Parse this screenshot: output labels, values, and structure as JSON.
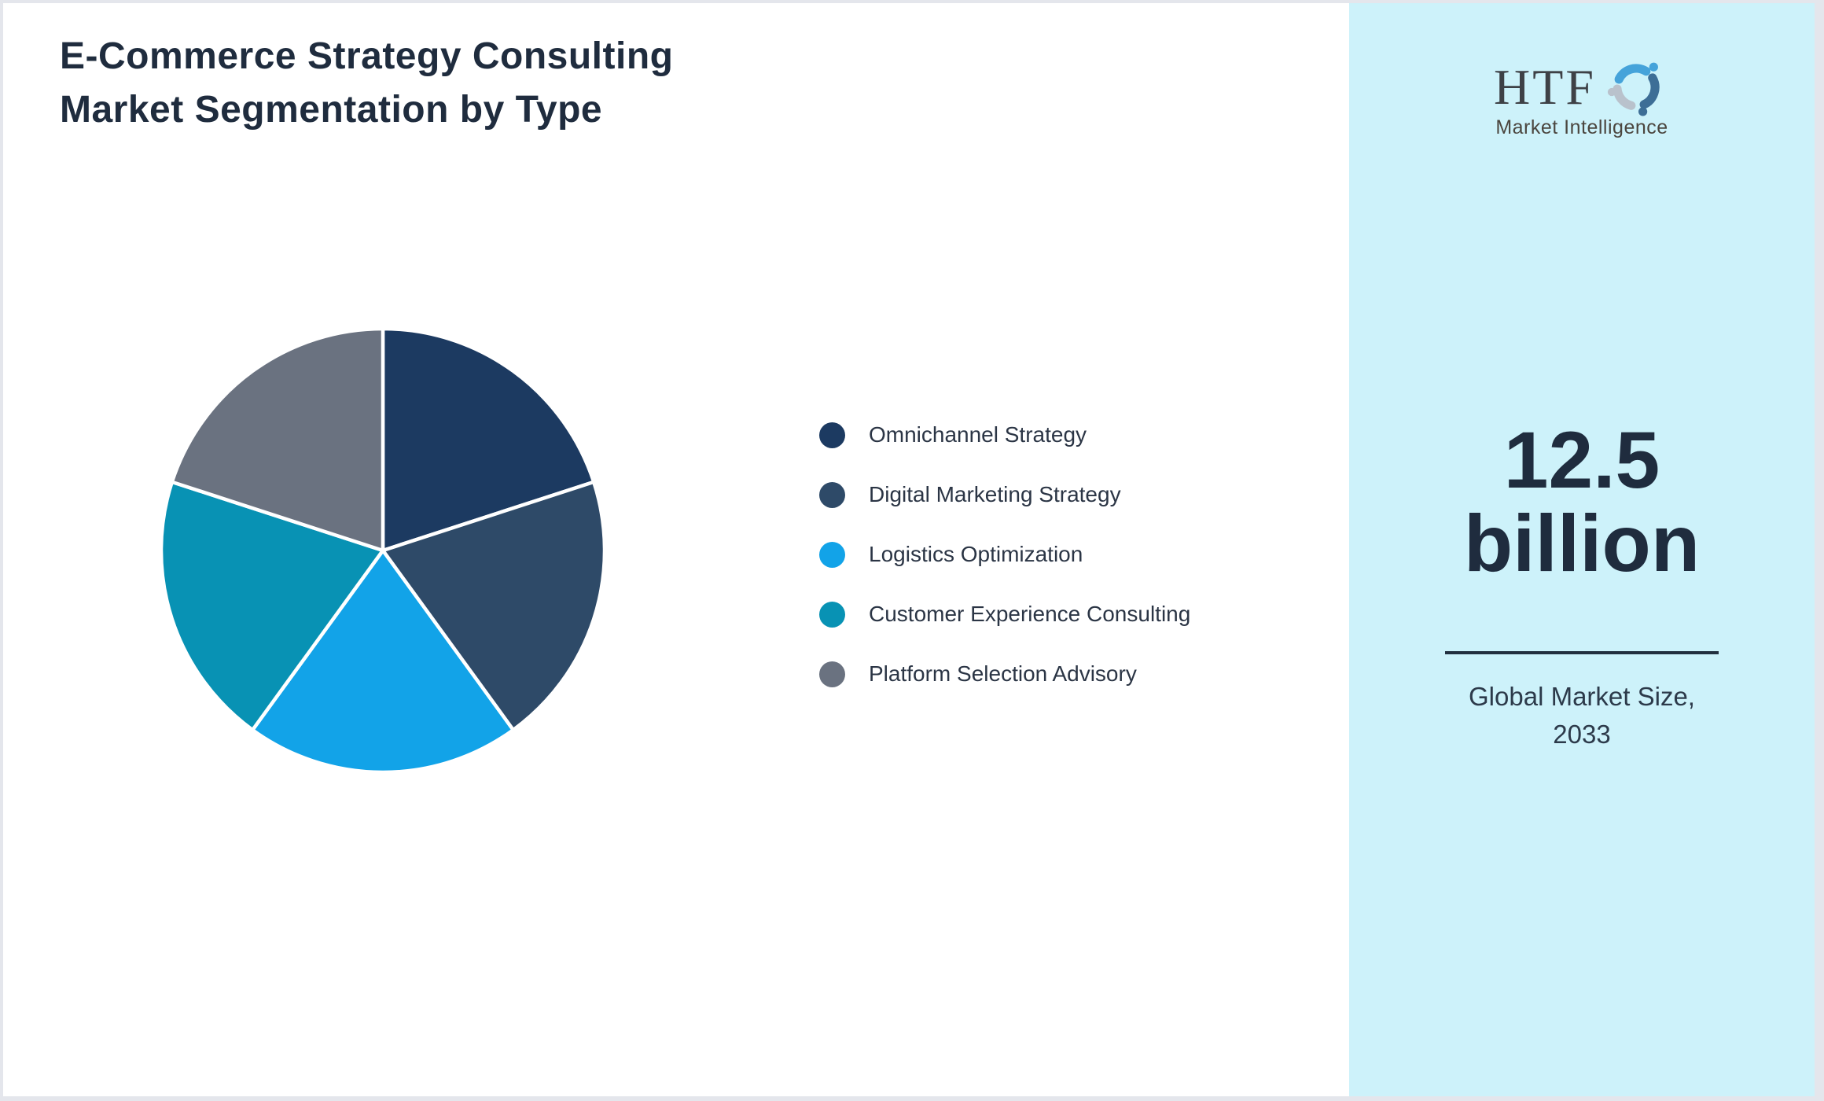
{
  "title": {
    "line1": "E-Commerce Strategy Consulting",
    "line2": "Market Segmentation by Type"
  },
  "chart_data": {
    "type": "pie",
    "title": "E-Commerce Strategy Consulting Market Segmentation by Type",
    "categories": [
      "Omnichannel Strategy",
      "Digital Marketing Strategy",
      "Logistics Optimization",
      "Customer Experience Consulting",
      "Platform Selection Advisory"
    ],
    "values": [
      20,
      20,
      20,
      20,
      20
    ],
    "unit": "percent",
    "colors": [
      "#1c3a61",
      "#2e4a68",
      "#12a3e8",
      "#0892b4",
      "#6a7280"
    ],
    "start_angle_deg": 0,
    "direction": "clockwise",
    "slice_border_color": "#ffffff",
    "legend_position": "right"
  },
  "legend": {
    "items": [
      {
        "label": "Omnichannel Strategy",
        "color": "#1c3a61"
      },
      {
        "label": "Digital Marketing Strategy",
        "color": "#2e4a68"
      },
      {
        "label": "Logistics Optimization",
        "color": "#12a3e8"
      },
      {
        "label": "Customer Experience Consulting",
        "color": "#0892b4"
      },
      {
        "label": "Platform Selection Advisory",
        "color": "#6a7280"
      }
    ]
  },
  "sidebar": {
    "logo": {
      "text": "HTF",
      "subtitle": "Market Intelligence",
      "dolphin_colors": [
        "#45a3da",
        "#3d6e96",
        "#b9c2cc"
      ]
    },
    "market_size": {
      "line1": "12.5",
      "line2": "billion"
    },
    "market_size_label": {
      "line1": "Global Market Size,",
      "line2": "2033"
    }
  },
  "theme": {
    "page_border": "#e4e6ec",
    "background": "#ffffff",
    "sidebar_background": "#cdf2fa",
    "text_primary": "#1f2c3e",
    "text_secondary": "#2b3545"
  }
}
